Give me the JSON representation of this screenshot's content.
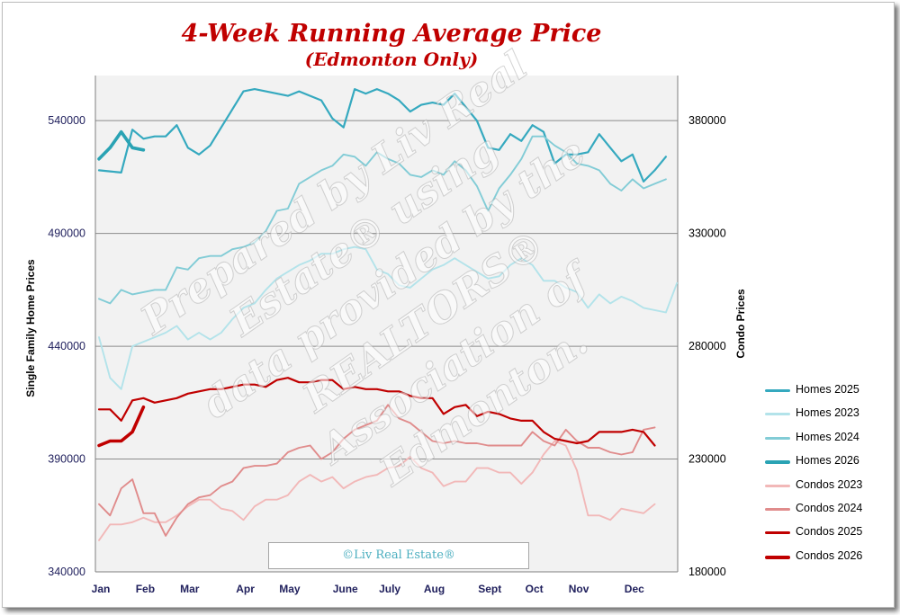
{
  "chart_data": {
    "type": "line",
    "title": "4-Week Running Average Price",
    "subtitle": "(Edmonton Only)",
    "ylabel": "Single Family Home Prices",
    "y2label": "Condo Prices",
    "ylim": [
      340000,
      560000
    ],
    "y2lim": [
      180000,
      400000
    ],
    "yticks": [
      "340000",
      "390000",
      "440000",
      "490000",
      "540000"
    ],
    "y2ticks": [
      "180000",
      "230000",
      "280000",
      "330000",
      "380000"
    ],
    "ytick_values": [
      340000,
      390000,
      440000,
      490000,
      540000
    ],
    "y2tick_values": [
      180000,
      230000,
      280000,
      330000,
      380000
    ],
    "xlim": [
      0,
      52
    ],
    "xticks": [
      "Jan",
      "Feb",
      "Mar",
      "Apr",
      "May",
      "June",
      "July",
      "Aug",
      "Sept",
      "Oct",
      "Nov",
      "Dec"
    ],
    "xtick_weeks": [
      0,
      4,
      8,
      13,
      17,
      22,
      26,
      30,
      35,
      39,
      43,
      48
    ],
    "grid": "horizontal",
    "legend_position": "right",
    "series": [
      {
        "name": "Homes 2025",
        "axis": "left",
        "color": "#35a9bf",
        "width": 2.2,
        "start": 0,
        "values": [
          518000,
          517500,
          517000,
          536000,
          532000,
          533000,
          533000,
          538000,
          528000,
          525000,
          529000,
          537000,
          545000,
          553000,
          554000,
          553000,
          552000,
          551000,
          553000,
          551000,
          549000,
          541000,
          537000,
          554000,
          552000,
          554000,
          552000,
          549000,
          544000,
          547000,
          548000,
          547000,
          552000,
          546000,
          540000,
          528000,
          527000,
          534000,
          531000,
          538000,
          535000,
          521000,
          525000,
          525000,
          526000,
          534000,
          528000,
          522000,
          525000,
          513000,
          518000,
          524000
        ]
      },
      {
        "name": "Homes 2023",
        "axis": "left",
        "color": "#b3e3ea",
        "width": 1.9,
        "start": 0,
        "values": [
          444000,
          426000,
          421000,
          440000,
          442000,
          444000,
          446000,
          449000,
          443000,
          446000,
          443000,
          446000,
          452000,
          457000,
          459000,
          465000,
          470000,
          473000,
          476000,
          478000,
          481000,
          481000,
          483000,
          484000,
          483000,
          474000,
          472000,
          467000,
          466000,
          470000,
          474000,
          476000,
          479000,
          476000,
          473000,
          470000,
          471000,
          476000,
          479000,
          476000,
          469000,
          469000,
          466000,
          464000,
          457000,
          463000,
          459000,
          462000,
          460000,
          457000,
          456000,
          455000,
          468000
        ]
      },
      {
        "name": "Homes 2024",
        "axis": "left",
        "color": "#82ccd6",
        "width": 1.9,
        "start": 0,
        "values": [
          461000,
          459000,
          465000,
          463000,
          464000,
          465000,
          465000,
          475000,
          474000,
          479000,
          480000,
          480000,
          483000,
          484000,
          486000,
          491000,
          500000,
          501000,
          512000,
          515000,
          518000,
          520000,
          525000,
          524000,
          520000,
          526000,
          523000,
          521000,
          516000,
          515000,
          518000,
          516000,
          522000,
          518000,
          511000,
          500000,
          510000,
          516000,
          523000,
          533000,
          533000,
          529000,
          526000,
          521000,
          520000,
          518000,
          512000,
          509000,
          514000,
          510000,
          512000,
          514000
        ]
      },
      {
        "name": "Homes 2026",
        "axis": "left",
        "color": "#2aa3b4",
        "width": 3.6,
        "start": 0,
        "values": [
          523000,
          528000,
          535000,
          528000,
          527000
        ]
      },
      {
        "name": "Condos 2023",
        "axis": "right",
        "color": "#f2b8b8",
        "width": 1.9,
        "start": 0,
        "values": [
          194000,
          201000,
          201000,
          202000,
          204000,
          202000,
          202000,
          205000,
          209000,
          212000,
          212000,
          208000,
          207000,
          203000,
          209000,
          212000,
          212000,
          214000,
          220000,
          223000,
          220000,
          222000,
          217000,
          220000,
          222000,
          223000,
          226000,
          227000,
          231000,
          226000,
          224000,
          218000,
          220000,
          220000,
          226000,
          226000,
          224000,
          224000,
          219000,
          224000,
          232000,
          238000,
          236000,
          225000,
          205000,
          205000,
          203000,
          208000,
          207000,
          206000,
          210000
        ]
      },
      {
        "name": "Condos 2024",
        "axis": "right",
        "color": "#e08c8c",
        "width": 1.9,
        "start": 0,
        "values": [
          210000,
          205000,
          217000,
          221000,
          206000,
          206000,
          196000,
          204000,
          210000,
          213000,
          214000,
          218000,
          220000,
          226000,
          227000,
          227000,
          228000,
          233000,
          235000,
          236000,
          230000,
          233000,
          239000,
          243000,
          245000,
          247000,
          254000,
          248000,
          246000,
          242000,
          238000,
          237000,
          238000,
          237000,
          237000,
          236000,
          236000,
          236000,
          236000,
          242000,
          238000,
          236000,
          243000,
          238000,
          235000,
          235000,
          233000,
          232000,
          233000,
          243000,
          244000
        ]
      },
      {
        "name": "Condos 2025",
        "axis": "right",
        "color": "#c00000",
        "width": 2.2,
        "start": 0,
        "values": [
          252000,
          252000,
          247000,
          256000,
          257000,
          255000,
          256000,
          257000,
          259000,
          260000,
          261000,
          261000,
          262000,
          263000,
          263000,
          262000,
          265000,
          266000,
          264000,
          264000,
          265000,
          265000,
          261000,
          262000,
          261000,
          261000,
          260000,
          260000,
          258000,
          257000,
          257000,
          250000,
          253000,
          254000,
          249000,
          251000,
          250000,
          248000,
          247000,
          247000,
          242000,
          239000,
          238000,
          237000,
          238000,
          242000,
          242000,
          242000,
          243000,
          242000,
          236000
        ]
      },
      {
        "name": "Condos 2026",
        "axis": "right",
        "color": "#c00000",
        "width": 3.6,
        "start": 0,
        "values": [
          236000,
          238000,
          238000,
          242000,
          253000
        ]
      }
    ]
  },
  "legend": [
    {
      "label": "Homes 2025",
      "color": "#35a9bf",
      "thick": false
    },
    {
      "label": "Homes 2023",
      "color": "#b3e3ea",
      "thick": false
    },
    {
      "label": "Homes 2024",
      "color": "#82ccd6",
      "thick": false
    },
    {
      "label": "Homes 2026",
      "color": "#2aa3b4",
      "thick": true
    },
    {
      "label": "Condos 2023",
      "color": "#f2b8b8",
      "thick": false
    },
    {
      "label": "Condos 2024",
      "color": "#e08c8c",
      "thick": false
    },
    {
      "label": "Condos 2025",
      "color": "#c00000",
      "thick": false
    },
    {
      "label": "Condos 2026",
      "color": "#c00000",
      "thick": true
    }
  ],
  "copyright": "©Liv Real Estate®",
  "watermark": [
    "Prepared by Liv Real",
    "Estate® using",
    "data provided by the",
    "REALTORS®",
    "Association of Edmonton."
  ]
}
